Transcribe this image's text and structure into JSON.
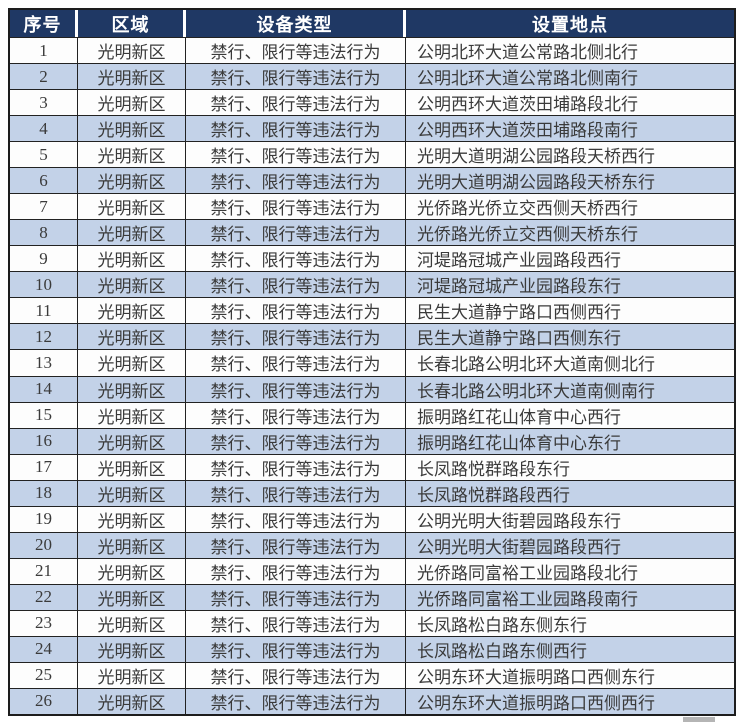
{
  "colors": {
    "header_bg": "#1f3864",
    "header_text": "#ffffff",
    "band_row_bg": "#c3d2e8",
    "plain_row_bg": "#fdfdfd",
    "body_text": "#3a3a3a",
    "border": "#222222"
  },
  "table": {
    "columns": [
      "序号",
      "区域",
      "设备类型",
      "设置地点"
    ],
    "rows": [
      {
        "no": "1",
        "region": "光明新区",
        "type": "禁行、限行等违法行为",
        "location": "公明北环大道公常路北侧北行"
      },
      {
        "no": "2",
        "region": "光明新区",
        "type": "禁行、限行等违法行为",
        "location": "公明北环大道公常路北侧南行"
      },
      {
        "no": "3",
        "region": "光明新区",
        "type": "禁行、限行等违法行为",
        "location": "公明西环大道茨田埔路段北行"
      },
      {
        "no": "4",
        "region": "光明新区",
        "type": "禁行、限行等违法行为",
        "location": "公明西环大道茨田埔路段南行"
      },
      {
        "no": "5",
        "region": "光明新区",
        "type": "禁行、限行等违法行为",
        "location": "光明大道明湖公园路段天桥西行"
      },
      {
        "no": "6",
        "region": "光明新区",
        "type": "禁行、限行等违法行为",
        "location": "光明大道明湖公园路段天桥东行"
      },
      {
        "no": "7",
        "region": "光明新区",
        "type": "禁行、限行等违法行为",
        "location": "光侨路光侨立交西侧天桥西行"
      },
      {
        "no": "8",
        "region": "光明新区",
        "type": "禁行、限行等违法行为",
        "location": "光侨路光侨立交西侧天桥东行"
      },
      {
        "no": "9",
        "region": "光明新区",
        "type": "禁行、限行等违法行为",
        "location": "河堤路冠城产业园路段西行"
      },
      {
        "no": "10",
        "region": "光明新区",
        "type": "禁行、限行等违法行为",
        "location": "河堤路冠城产业园路段东行"
      },
      {
        "no": "11",
        "region": "光明新区",
        "type": "禁行、限行等违法行为",
        "location": "民生大道静宁路口西侧西行"
      },
      {
        "no": "12",
        "region": "光明新区",
        "type": "禁行、限行等违法行为",
        "location": "民生大道静宁路口西侧东行"
      },
      {
        "no": "13",
        "region": "光明新区",
        "type": "禁行、限行等违法行为",
        "location": "长春北路公明北环大道南侧北行"
      },
      {
        "no": "14",
        "region": "光明新区",
        "type": "禁行、限行等违法行为",
        "location": "长春北路公明北环大道南侧南行"
      },
      {
        "no": "15",
        "region": "光明新区",
        "type": "禁行、限行等违法行为",
        "location": "振明路红花山体育中心西行"
      },
      {
        "no": "16",
        "region": "光明新区",
        "type": "禁行、限行等违法行为",
        "location": "振明路红花山体育中心东行"
      },
      {
        "no": "17",
        "region": "光明新区",
        "type": "禁行、限行等违法行为",
        "location": "长凤路悦群路段东行"
      },
      {
        "no": "18",
        "region": "光明新区",
        "type": "禁行、限行等违法行为",
        "location": "长凤路悦群路段西行"
      },
      {
        "no": "19",
        "region": "光明新区",
        "type": "禁行、限行等违法行为",
        "location": "公明光明大街碧园路段东行"
      },
      {
        "no": "20",
        "region": "光明新区",
        "type": "禁行、限行等违法行为",
        "location": "公明光明大街碧园路段西行"
      },
      {
        "no": "21",
        "region": "光明新区",
        "type": "禁行、限行等违法行为",
        "location": "光侨路同富裕工业园路段北行"
      },
      {
        "no": "22",
        "region": "光明新区",
        "type": "禁行、限行等违法行为",
        "location": "光侨路同富裕工业园路段南行"
      },
      {
        "no": "23",
        "region": "光明新区",
        "type": "禁行、限行等违法行为",
        "location": "长凤路松白路东侧东行"
      },
      {
        "no": "24",
        "region": "光明新区",
        "type": "禁行、限行等违法行为",
        "location": "长凤路松白路东侧西行"
      },
      {
        "no": "25",
        "region": "光明新区",
        "type": "禁行、限行等违法行为",
        "location": "公明东环大道振明路口西侧东行"
      },
      {
        "no": "26",
        "region": "光明新区",
        "type": "禁行、限行等违法行为",
        "location": "公明东环大道振明路口西侧西行"
      }
    ]
  }
}
